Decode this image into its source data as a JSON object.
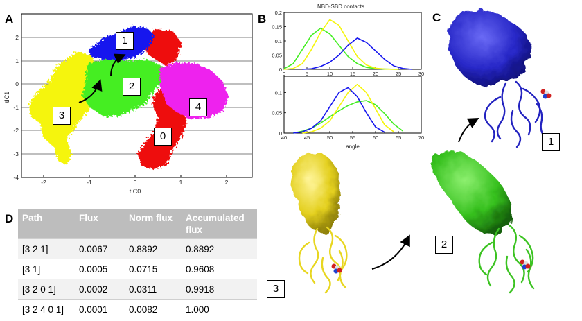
{
  "panels": {
    "a": "A",
    "b": "B",
    "c": "C",
    "d": "D"
  },
  "tica_plot": {
    "xlabel": "tIC0",
    "ylabel": "tIC1",
    "x_ticks": [
      "-2",
      "-1",
      "0",
      "1",
      "2"
    ],
    "y_ticks": [
      "2",
      "1",
      "0",
      "-1",
      "-2",
      "-3",
      "-4"
    ],
    "state_labels": [
      "1",
      "2",
      "3",
      "4",
      "0"
    ],
    "colors": {
      "state0": "#ee1111",
      "state1": "#1515ee",
      "state2": "#44ee22",
      "state3": "#f5f50a",
      "state4": "#ee22ee"
    }
  },
  "angle_plots": {
    "title": "NBD-SBD contacts",
    "xlabel": "angle"
  },
  "chart_data": [
    {
      "type": "line",
      "title": "NBD-SBD contacts",
      "xlim": [
        0,
        30
      ],
      "ylim": [
        0,
        0.2
      ],
      "x_ticks": [
        "0",
        "5",
        "10",
        "15",
        "20",
        "25",
        "30"
      ],
      "y_ticks": [
        "0",
        "0.05",
        "0.1",
        "0.15",
        "0.2"
      ],
      "series": [
        {
          "color": "#44ee22",
          "x": [
            0,
            2,
            4,
            6,
            8,
            10,
            12,
            14,
            16,
            18,
            20,
            22,
            25
          ],
          "y": [
            0.002,
            0.02,
            0.07,
            0.12,
            0.145,
            0.125,
            0.085,
            0.045,
            0.02,
            0.007,
            0.002,
            0.001,
            0
          ]
        },
        {
          "color": "#f5f50a",
          "x": [
            0,
            2,
            4,
            6,
            8,
            10,
            12,
            14,
            16,
            18,
            20,
            22,
            25
          ],
          "y": [
            0,
            0.003,
            0.02,
            0.07,
            0.13,
            0.175,
            0.155,
            0.1,
            0.045,
            0.015,
            0.004,
            0.001,
            0
          ]
        },
        {
          "color": "#1515ee",
          "x": [
            4,
            6,
            8,
            10,
            12,
            14,
            16,
            18,
            20,
            22,
            24,
            26,
            28
          ],
          "y": [
            0,
            0.002,
            0.01,
            0.025,
            0.05,
            0.085,
            0.11,
            0.095,
            0.065,
            0.035,
            0.012,
            0.003,
            0
          ]
        }
      ]
    },
    {
      "type": "line",
      "xlabel": "angle",
      "xlim": [
        40,
        70
      ],
      "ylim": [
        0,
        0.14
      ],
      "x_ticks": [
        "40",
        "45",
        "50",
        "55",
        "60",
        "65",
        "70"
      ],
      "y_ticks": [
        "0",
        "0.05",
        "0.1"
      ],
      "series": [
        {
          "color": "#44ee22",
          "x": [
            42,
            44,
            46,
            48,
            50,
            52,
            54,
            56,
            58,
            60,
            62,
            64,
            66
          ],
          "y": [
            0,
            0.005,
            0.012,
            0.025,
            0.04,
            0.055,
            0.068,
            0.077,
            0.08,
            0.07,
            0.048,
            0.022,
            0.005
          ]
        },
        {
          "color": "#f5f50a",
          "x": [
            44,
            46,
            48,
            50,
            52,
            54,
            56,
            58,
            60,
            62,
            64
          ],
          "y": [
            0,
            0.003,
            0.012,
            0.03,
            0.065,
            0.1,
            0.12,
            0.1,
            0.06,
            0.02,
            0.003
          ]
        },
        {
          "color": "#1515ee",
          "x": [
            42,
            44,
            46,
            48,
            50,
            52,
            54,
            56,
            58,
            60,
            62
          ],
          "y": [
            0,
            0.003,
            0.012,
            0.03,
            0.065,
            0.1,
            0.112,
            0.09,
            0.05,
            0.015,
            0.002
          ]
        }
      ]
    },
    {
      "type": "table",
      "columns": [
        "Path",
        "Flux",
        "Norm flux",
        "Accumulated flux"
      ],
      "rows": [
        [
          "[3 2 1]",
          "0.0067",
          "0.8892",
          "0.8892"
        ],
        [
          "[3 1]",
          "0.0005",
          "0.0715",
          "0.9608"
        ],
        [
          "[3 2 0 1]",
          "0.0002",
          "0.0311",
          "0.9918"
        ],
        [
          "[3 2 4 0 1]",
          "0.0001",
          "0.0082",
          "1.000"
        ]
      ]
    }
  ],
  "table": {
    "header": {
      "path": "Path",
      "flux": "Flux",
      "norm_flux": "Norm flux",
      "acc_flux": "Accumulated flux"
    },
    "rows": [
      {
        "path": "[3 2 1]",
        "flux": "0.0067",
        "norm": "0.8892",
        "acc": "0.8892"
      },
      {
        "path": "[3 1]",
        "flux": "0.0005",
        "norm": "0.0715",
        "acc": "0.9608"
      },
      {
        "path": "[3 2 0 1]",
        "flux": "0.0002",
        "norm": "0.0311",
        "acc": "0.9918"
      },
      {
        "path": "[3 2 4 0 1]",
        "flux": "0.0001",
        "norm": "0.0082",
        "acc": "1.000"
      }
    ]
  },
  "structures": {
    "state1": {
      "label": "1",
      "color": "#2a2ad6"
    },
    "state2": {
      "label": "2",
      "color": "#3ed12a"
    },
    "state3": {
      "label": "3",
      "color": "#e8d620"
    }
  }
}
